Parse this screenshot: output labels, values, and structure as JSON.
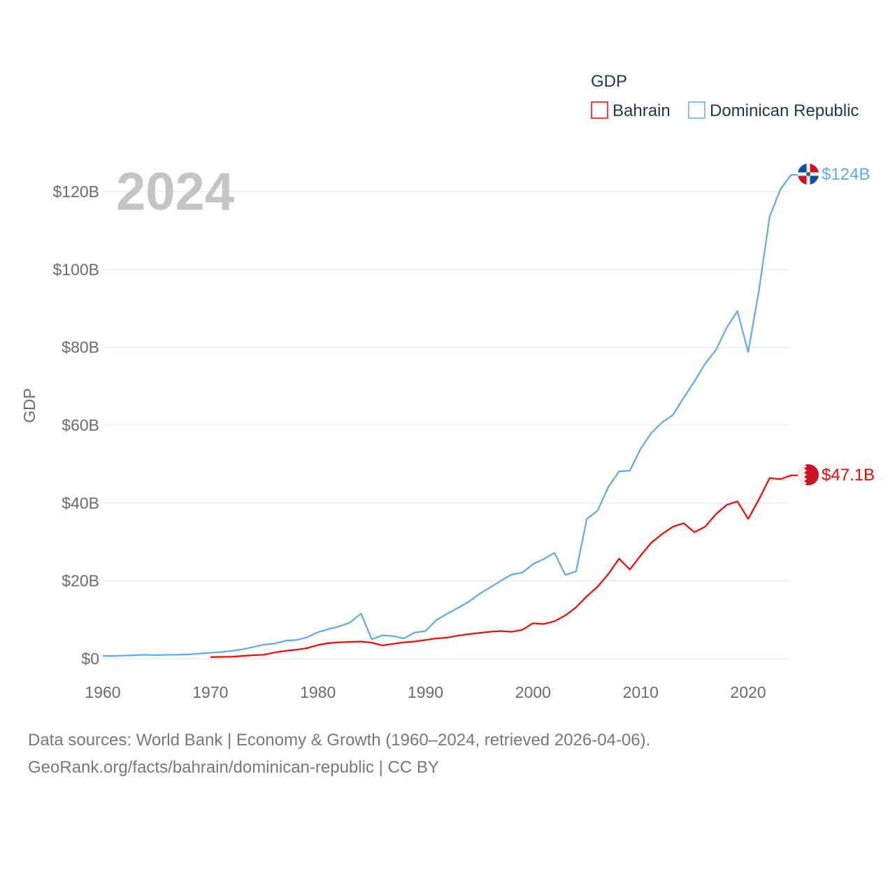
{
  "chart_data": {
    "type": "line",
    "title": "",
    "watermark_year": "2024",
    "xlabel": "",
    "ylabel": "GDP",
    "xlim": [
      1960,
      2024
    ],
    "ylim": [
      0,
      125
    ],
    "x_ticks": [
      1960,
      1970,
      1980,
      1990,
      2000,
      2010,
      2020
    ],
    "x_tick_labels": [
      "1960",
      "1970",
      "1980",
      "1990",
      "2000",
      "2010",
      "2020"
    ],
    "y_ticks": [
      0,
      20,
      40,
      60,
      80,
      100,
      120
    ],
    "y_tick_labels": [
      "$0",
      "$20B",
      "$40B",
      "$60B",
      "$80B",
      "$100B",
      "$120B"
    ],
    "grid": true,
    "legend": {
      "title": "GDP",
      "placement": "top-right",
      "entries": [
        "Bahrain",
        "Dominican Republic"
      ]
    },
    "series": [
      {
        "name": "Bahrain",
        "color": "#ff0000",
        "end_label": "$47.1B",
        "flag": "bahrain-flag",
        "start_year": 1970,
        "values": [
          0.4,
          0.45,
          0.5,
          0.7,
          0.9,
          1.0,
          1.6,
          2.0,
          2.3,
          2.7,
          3.5,
          4.0,
          4.2,
          4.3,
          4.4,
          4.1,
          3.4,
          3.8,
          4.2,
          4.4,
          4.8,
          5.2,
          5.4,
          5.9,
          6.3,
          6.6,
          6.9,
          7.1,
          6.9,
          7.4,
          9.1,
          8.9,
          9.6,
          11.1,
          13.2,
          16.0,
          18.5,
          21.7,
          25.7,
          22.9,
          26.5,
          29.8,
          32.0,
          33.9,
          34.8,
          32.5,
          33.9,
          37.1,
          39.5,
          40.4,
          35.9,
          40.9,
          46.4,
          46.1,
          47.1
        ]
      },
      {
        "name": "Dominican Republic",
        "color": "#5ea8ec",
        "end_label": "$124B",
        "flag": "dominican-republic-flag",
        "start_year": 1960,
        "values": [
          0.7,
          0.7,
          0.8,
          0.9,
          1.0,
          0.9,
          1.0,
          1.0,
          1.1,
          1.3,
          1.5,
          1.7,
          2.0,
          2.4,
          3.0,
          3.6,
          3.9,
          4.6,
          4.8,
          5.5,
          6.8,
          7.6,
          8.3,
          9.3,
          11.6,
          5.0,
          6.0,
          5.8,
          5.2,
          6.7,
          7.1,
          9.9,
          11.5,
          13.0,
          14.6,
          16.6,
          18.3,
          20.0,
          21.6,
          22.1,
          24.3,
          25.6,
          27.2,
          21.5,
          22.4,
          35.9,
          38.0,
          44.1,
          48.1,
          48.3,
          53.9,
          58.0,
          60.7,
          62.6,
          67.0,
          71.2,
          75.8,
          79.3,
          85.0,
          89.3,
          78.8,
          94.5,
          113.6,
          120.6,
          124.3
        ]
      }
    ]
  },
  "footer": {
    "line1": "Data sources: World Bank | Economy & Growth (1960–2024, retrieved 2026-04-06).",
    "line2": "GeoRank.org/facts/bahrain/dominican-republic | CC BY"
  }
}
